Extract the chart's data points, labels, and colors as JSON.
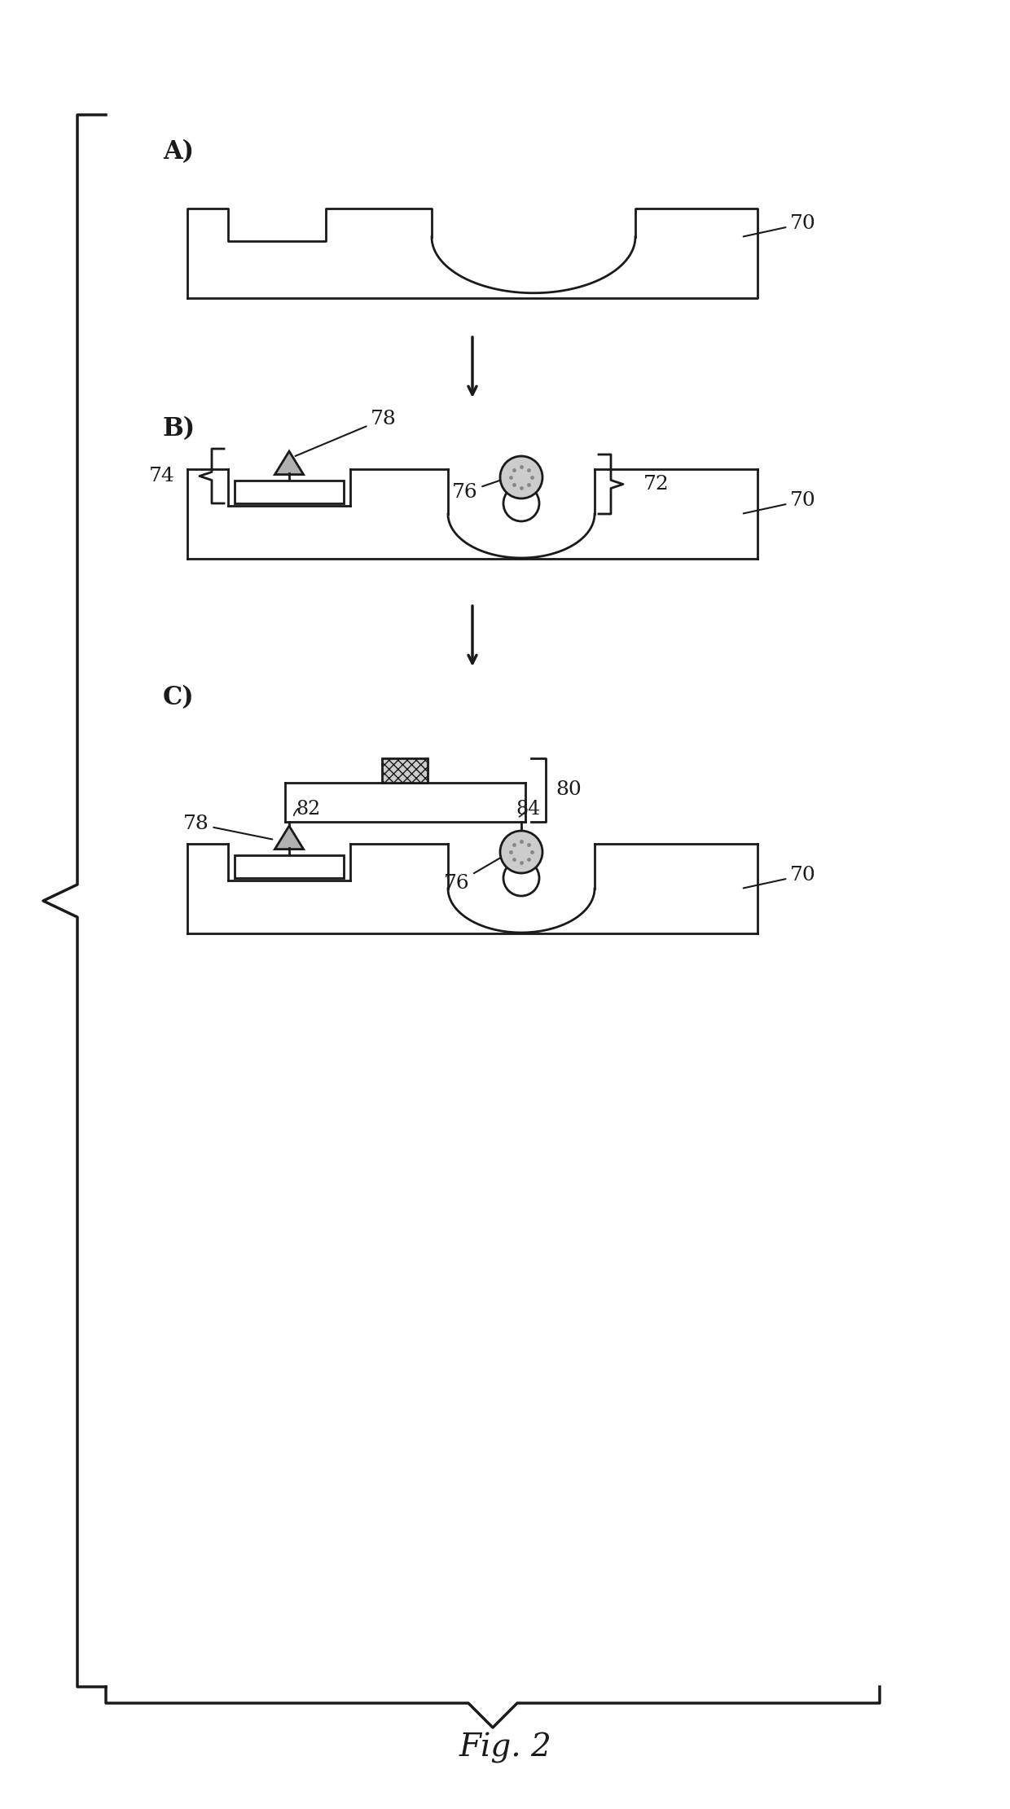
{
  "title": "Fig. 2",
  "bg_color": "#ffffff",
  "line_color": "#1a1a1a",
  "panel_A_label": "A)",
  "panel_B_label": "B)",
  "panel_C_label": "C)",
  "label_70": "70",
  "label_72": "72",
  "label_74": "74",
  "label_76": "76",
  "label_78": "78",
  "label_80": "80",
  "label_82": "82",
  "label_84": "84",
  "fig_label": "Fig. 2"
}
